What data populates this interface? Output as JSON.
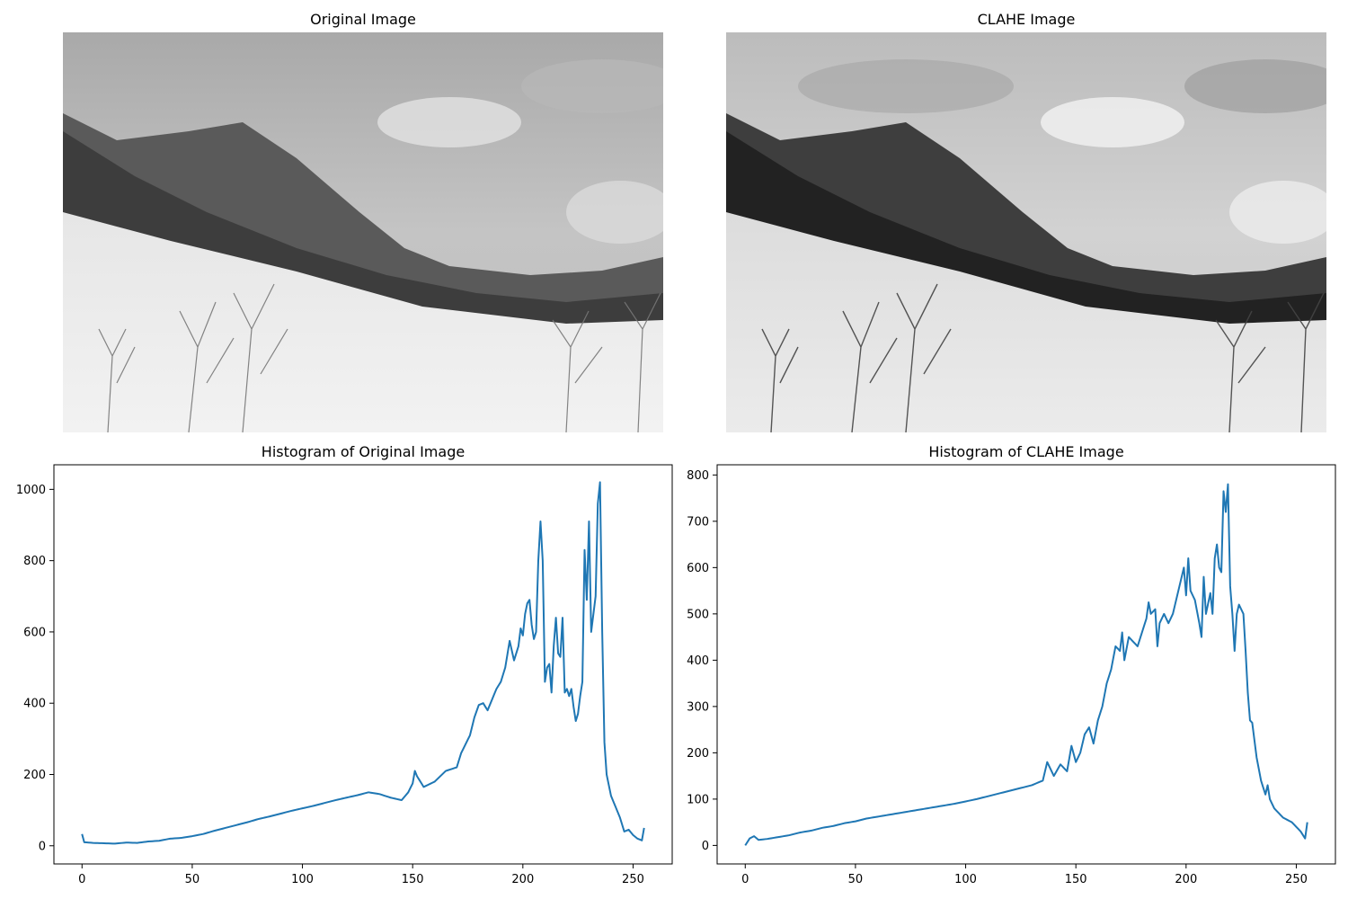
{
  "titles": {
    "original": "Original Image",
    "clahe": "CLAHE Image",
    "hist_original": "Histogram of Original Image",
    "hist_clahe": "Histogram of CLAHE Image"
  },
  "colors": {
    "line": "#1f77b4",
    "axis": "#000000"
  },
  "chart_data": [
    {
      "type": "line",
      "title": "Histogram of Original Image",
      "xlabel": "",
      "ylabel": "",
      "xlim": [
        -12.75,
        267.75
      ],
      "ylim": [
        -51,
        1069
      ],
      "xticks": [
        0,
        50,
        100,
        150,
        200,
        250
      ],
      "yticks": [
        0,
        200,
        400,
        600,
        800,
        1000
      ],
      "x_range": [
        0,
        255
      ],
      "anchors": [
        [
          0,
          33
        ],
        [
          1,
          10
        ],
        [
          5,
          8
        ],
        [
          10,
          7
        ],
        [
          15,
          6
        ],
        [
          20,
          9
        ],
        [
          25,
          8
        ],
        [
          30,
          12
        ],
        [
          35,
          14
        ],
        [
          40,
          20
        ],
        [
          45,
          22
        ],
        [
          50,
          27
        ],
        [
          55,
          33
        ],
        [
          60,
          42
        ],
        [
          65,
          50
        ],
        [
          70,
          58
        ],
        [
          75,
          66
        ],
        [
          80,
          75
        ],
        [
          85,
          82
        ],
        [
          90,
          90
        ],
        [
          95,
          98
        ],
        [
          100,
          105
        ],
        [
          105,
          112
        ],
        [
          110,
          120
        ],
        [
          115,
          128
        ],
        [
          120,
          135
        ],
        [
          125,
          142
        ],
        [
          130,
          150
        ],
        [
          135,
          145
        ],
        [
          140,
          135
        ],
        [
          145,
          128
        ],
        [
          148,
          150
        ],
        [
          150,
          175
        ],
        [
          151,
          210
        ],
        [
          152,
          195
        ],
        [
          155,
          165
        ],
        [
          160,
          180
        ],
        [
          165,
          210
        ],
        [
          170,
          220
        ],
        [
          172,
          260
        ],
        [
          174,
          285
        ],
        [
          176,
          310
        ],
        [
          178,
          360
        ],
        [
          180,
          395
        ],
        [
          182,
          400
        ],
        [
          184,
          380
        ],
        [
          186,
          410
        ],
        [
          188,
          440
        ],
        [
          190,
          460
        ],
        [
          192,
          500
        ],
        [
          194,
          575
        ],
        [
          196,
          520
        ],
        [
          198,
          560
        ],
        [
          199,
          610
        ],
        [
          200,
          590
        ],
        [
          201,
          650
        ],
        [
          202,
          680
        ],
        [
          203,
          690
        ],
        [
          204,
          620
        ],
        [
          205,
          580
        ],
        [
          206,
          600
        ],
        [
          207,
          800
        ],
        [
          208,
          910
        ],
        [
          209,
          800
        ],
        [
          210,
          460
        ],
        [
          211,
          500
        ],
        [
          212,
          510
        ],
        [
          213,
          430
        ],
        [
          214,
          560
        ],
        [
          215,
          640
        ],
        [
          216,
          540
        ],
        [
          217,
          530
        ],
        [
          218,
          640
        ],
        [
          219,
          430
        ],
        [
          220,
          440
        ],
        [
          221,
          420
        ],
        [
          222,
          440
        ],
        [
          223,
          390
        ],
        [
          224,
          350
        ],
        [
          225,
          370
        ],
        [
          226,
          420
        ],
        [
          227,
          460
        ],
        [
          228,
          830
        ],
        [
          229,
          690
        ],
        [
          230,
          910
        ],
        [
          231,
          600
        ],
        [
          232,
          650
        ],
        [
          233,
          700
        ],
        [
          234,
          960
        ],
        [
          235,
          1020
        ],
        [
          236,
          600
        ],
        [
          237,
          290
        ],
        [
          238,
          200
        ],
        [
          239,
          170
        ],
        [
          240,
          140
        ],
        [
          242,
          110
        ],
        [
          244,
          80
        ],
        [
          246,
          40
        ],
        [
          248,
          45
        ],
        [
          250,
          30
        ],
        [
          252,
          20
        ],
        [
          254,
          15
        ],
        [
          255,
          50
        ]
      ]
    },
    {
      "type": "line",
      "title": "Histogram of CLAHE Image",
      "xlabel": "",
      "ylabel": "",
      "xlim": [
        -12.75,
        267.75
      ],
      "ylim": [
        -40,
        822
      ],
      "xticks": [
        0,
        50,
        100,
        150,
        200,
        250
      ],
      "yticks": [
        0,
        100,
        200,
        300,
        400,
        500,
        600,
        700,
        800
      ],
      "x_range": [
        0,
        255
      ],
      "anchors": [
        [
          0,
          0
        ],
        [
          2,
          15
        ],
        [
          4,
          20
        ],
        [
          6,
          12
        ],
        [
          10,
          14
        ],
        [
          15,
          18
        ],
        [
          20,
          22
        ],
        [
          25,
          28
        ],
        [
          30,
          32
        ],
        [
          35,
          38
        ],
        [
          40,
          42
        ],
        [
          45,
          48
        ],
        [
          50,
          52
        ],
        [
          55,
          58
        ],
        [
          60,
          62
        ],
        [
          65,
          66
        ],
        [
          70,
          70
        ],
        [
          75,
          74
        ],
        [
          80,
          78
        ],
        [
          85,
          82
        ],
        [
          90,
          86
        ],
        [
          95,
          90
        ],
        [
          100,
          95
        ],
        [
          105,
          100
        ],
        [
          110,
          106
        ],
        [
          115,
          112
        ],
        [
          120,
          118
        ],
        [
          125,
          124
        ],
        [
          130,
          130
        ],
        [
          135,
          140
        ],
        [
          137,
          180
        ],
        [
          140,
          150
        ],
        [
          143,
          175
        ],
        [
          146,
          160
        ],
        [
          148,
          215
        ],
        [
          150,
          180
        ],
        [
          152,
          200
        ],
        [
          154,
          240
        ],
        [
          156,
          255
        ],
        [
          158,
          220
        ],
        [
          160,
          270
        ],
        [
          162,
          300
        ],
        [
          164,
          350
        ],
        [
          166,
          380
        ],
        [
          168,
          430
        ],
        [
          170,
          420
        ],
        [
          171,
          460
        ],
        [
          172,
          400
        ],
        [
          174,
          450
        ],
        [
          176,
          440
        ],
        [
          178,
          430
        ],
        [
          180,
          460
        ],
        [
          182,
          490
        ],
        [
          183,
          525
        ],
        [
          184,
          500
        ],
        [
          186,
          510
        ],
        [
          187,
          430
        ],
        [
          188,
          480
        ],
        [
          190,
          500
        ],
        [
          192,
          480
        ],
        [
          194,
          500
        ],
        [
          196,
          540
        ],
        [
          198,
          580
        ],
        [
          199,
          600
        ],
        [
          200,
          540
        ],
        [
          201,
          620
        ],
        [
          202,
          550
        ],
        [
          204,
          530
        ],
        [
          206,
          480
        ],
        [
          207,
          450
        ],
        [
          208,
          580
        ],
        [
          209,
          500
        ],
        [
          211,
          545
        ],
        [
          212,
          500
        ],
        [
          213,
          620
        ],
        [
          214,
          650
        ],
        [
          215,
          600
        ],
        [
          216,
          590
        ],
        [
          217,
          765
        ],
        [
          218,
          720
        ],
        [
          219,
          780
        ],
        [
          220,
          560
        ],
        [
          221,
          500
        ],
        [
          222,
          420
        ],
        [
          223,
          500
        ],
        [
          224,
          520
        ],
        [
          226,
          500
        ],
        [
          227,
          420
        ],
        [
          228,
          330
        ],
        [
          229,
          270
        ],
        [
          230,
          265
        ],
        [
          232,
          190
        ],
        [
          234,
          140
        ],
        [
          236,
          110
        ],
        [
          237,
          130
        ],
        [
          238,
          100
        ],
        [
          240,
          80
        ],
        [
          242,
          70
        ],
        [
          244,
          60
        ],
        [
          246,
          55
        ],
        [
          248,
          50
        ],
        [
          250,
          40
        ],
        [
          252,
          30
        ],
        [
          254,
          15
        ],
        [
          255,
          50
        ]
      ]
    }
  ]
}
